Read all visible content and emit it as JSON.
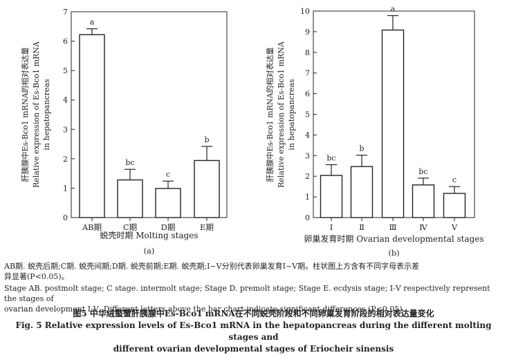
{
  "chart_data": [
    {
      "type": "bar",
      "panel_label": "(a)",
      "categories": [
        "AB期",
        "C期",
        "D期",
        "E期"
      ],
      "values": [
        6.22,
        1.28,
        0.99,
        1.94
      ],
      "errors": [
        0.2,
        0.36,
        0.25,
        0.48
      ],
      "letters": [
        "a",
        "bc",
        "c",
        "b"
      ],
      "xlabel": "蜕壳时期 Molting stages",
      "ylabel": [
        "肝胰腺中Es-Bco1 mRNA的相对表达量",
        "Relative expression of Es-Bco1 mRNA",
        "in hepatopancreas"
      ],
      "ylim": [
        0,
        7
      ],
      "yticks": [
        "0",
        "1",
        "2",
        "3",
        "4",
        "5",
        "6",
        "7"
      ],
      "grid": false
    },
    {
      "type": "bar",
      "panel_label": "(b)",
      "categories": [
        "Ⅰ",
        "Ⅱ",
        "Ⅲ",
        "Ⅳ",
        "Ⅴ"
      ],
      "values": [
        2.04,
        2.47,
        9.08,
        1.58,
        1.17
      ],
      "errors": [
        0.52,
        0.55,
        0.7,
        0.33,
        0.33
      ],
      "letters": [
        "bc",
        "b",
        "a",
        "bc",
        "c"
      ],
      "xlabel": "卵巢发育时期 Ovarian developmental stages",
      "ylabel": [
        "肝胰腺中Es-Bco1 mRNA的相对表达量",
        "Relative expression of Es-Bco1 mRNA",
        "in hepatopancreas"
      ],
      "ylim": [
        0,
        10
      ],
      "yticks": [
        "0",
        "1",
        "2",
        "3",
        "4",
        "5",
        "6",
        "7",
        "8",
        "9",
        "10"
      ],
      "grid": false
    }
  ],
  "notes": {
    "line1": "AB期. 蜕壳后期;C期. 蜕壳间期;D期. 蜕壳前期;E期. 蜕壳期;Ⅰ~Ⅴ分别代表卵巢发育Ⅰ~Ⅴ期。柱状图上方含有不同字母表示差",
    "line2": "异显著(P<0.05)。",
    "line3": "Stage AB. postmolt stage; C stage. intermolt stage; Stage D. premolt stage; Stage E. ecdysis stage; Ⅰ-Ⅴ respectively represent the stages of",
    "line4": "ovarian development Ⅰ-Ⅴ. Different letters above the bar chart indicate significant differences (P<0.05)."
  },
  "captions": {
    "cn": "图5  中华绒螯蟹肝胰腺中Es-Bco1 mRNA在不同蜕壳阶段和不同卵巢发育阶段的相对表达量变化",
    "en1": "Fig. 5   Relative expression levels of Es-Bco1 mRNA in the hepatopancreas during the different molting stages and",
    "en2": "different ovarian developmental stages of Eriocheir sinensis"
  }
}
